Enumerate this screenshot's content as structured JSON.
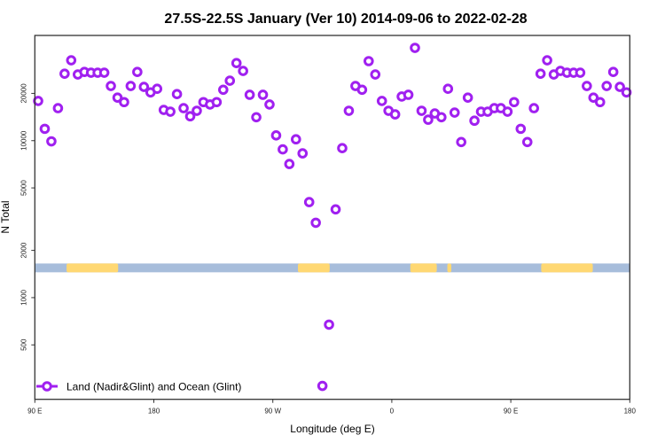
{
  "chart_data": {
    "type": "scatter",
    "title": "27.5S-22.5S January (Ver 10)   2014-09-06 to 2022-02-28",
    "xlabel": "Longitude (deg E)",
    "ylabel": "N Total",
    "xlim": [
      90,
      540
    ],
    "ylim": [
      225,
      46800
    ],
    "yscale": "log",
    "grid": false,
    "x_ticks": [
      {
        "value": 90,
        "label": "90 E"
      },
      {
        "value": 180,
        "label": "180"
      },
      {
        "value": 270,
        "label": "90 W"
      },
      {
        "value": 360,
        "label": "0"
      },
      {
        "value": 450,
        "label": "90 E"
      },
      {
        "value": 540,
        "label": "180"
      }
    ],
    "y_ticks": [
      {
        "value": 500,
        "label": "500"
      },
      {
        "value": 1000,
        "label": "1000"
      },
      {
        "value": 2000,
        "label": "2000"
      },
      {
        "value": 5000,
        "label": "5000"
      },
      {
        "value": 10000,
        "label": "10000"
      },
      {
        "value": 20000,
        "label": "20000"
      }
    ],
    "legend": {
      "placement": "bottom-left",
      "label": "Land (Nadir&Glint) and Ocean (Glint)"
    },
    "colors": {
      "series": "#a020f0",
      "ocean": "#a7bddb",
      "land": "#ffd873"
    },
    "surface_band": {
      "value_range": [
        1450,
        1650
      ],
      "land_segments": [
        [
          114,
          153
        ],
        [
          289,
          313
        ],
        [
          374,
          394
        ],
        [
          402,
          405
        ],
        [
          473,
          512
        ]
      ]
    },
    "series": [
      {
        "name": "Land (Nadir&Glint) and Ocean (Glint)",
        "x": [
          92.5,
          97.5,
          102.5,
          107.5,
          112.5,
          117.5,
          122.5,
          127.5,
          132.5,
          137.5,
          142.5,
          147.5,
          152.5,
          157.5,
          162.5,
          167.5,
          172.5,
          177.5,
          182.5,
          187.5,
          192.5,
          197.5,
          202.5,
          207.5,
          212.5,
          217.5,
          222.5,
          227.5,
          232.5,
          237.5,
          242.5,
          247.5,
          252.5,
          257.5,
          262.5,
          267.5,
          272.5,
          277.5,
          282.5,
          287.5,
          292.5,
          297.5,
          302.5,
          307.5,
          312.5,
          317.5,
          322.5,
          327.5,
          332.5,
          337.5,
          342.5,
          347.5,
          352.5,
          357.5,
          362.5,
          367.5,
          372.5,
          377.5,
          382.5,
          387.5,
          392.5,
          397.5,
          402.5,
          407.5,
          412.5,
          417.5,
          422.5,
          427.5,
          432.5,
          437.5,
          442.5,
          447.5,
          452.5,
          457.5,
          462.5,
          467.5,
          472.5,
          477.5,
          482.5,
          487.5,
          492.5,
          497.5,
          502.5,
          507.5,
          512.5,
          517.5,
          522.5,
          527.5,
          532.5,
          537.5
        ],
        "y": [
          17900,
          11900,
          9900,
          16100,
          26700,
          32500,
          26400,
          27400,
          27100,
          27100,
          27100,
          22300,
          18800,
          17600,
          22300,
          27400,
          22000,
          20300,
          21400,
          15700,
          15300,
          19800,
          16100,
          14300,
          15500,
          17600,
          17000,
          17600,
          21100,
          24100,
          31200,
          27800,
          19600,
          14100,
          19600,
          17000,
          10800,
          8800,
          7100,
          10200,
          8300,
          4060,
          3000,
          274,
          673,
          3650,
          8960,
          15500,
          22300,
          21100,
          32100,
          26400,
          17900,
          15500,
          14700,
          19100,
          19600,
          39000,
          15500,
          13600,
          14900,
          14100,
          21400,
          15100,
          9800,
          18800,
          13400,
          15300,
          15300,
          16100,
          16100,
          15300,
          17600,
          11900,
          9800,
          16100,
          26700,
          32500,
          26400,
          27800,
          27100,
          27100,
          27100,
          22300,
          18800,
          17600,
          22300,
          27400,
          22000,
          20300
        ]
      }
    ]
  }
}
